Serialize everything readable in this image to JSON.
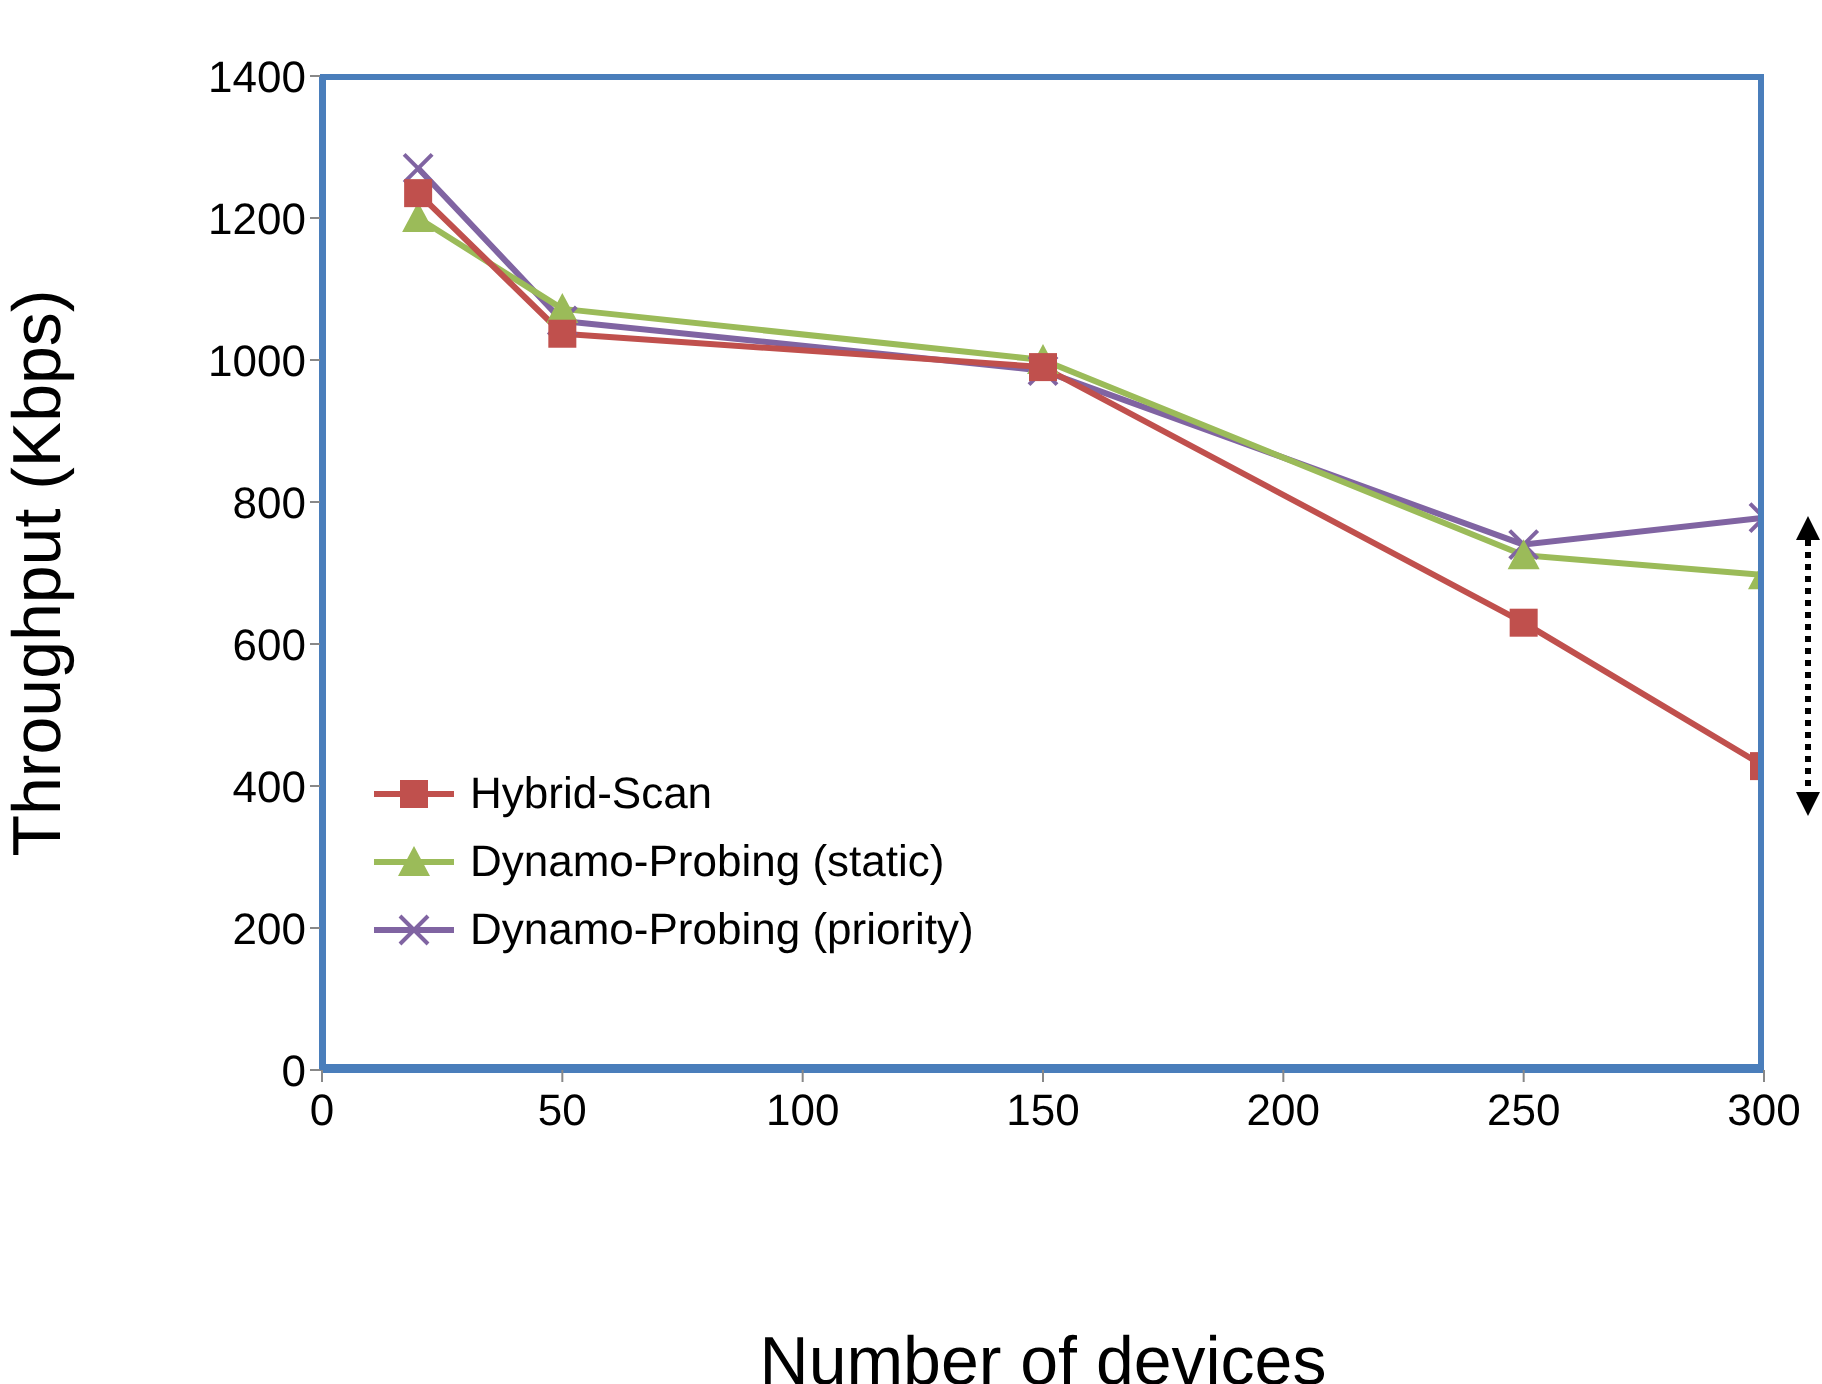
{
  "chart_data": {
    "type": "line",
    "xlabel": "Number of devices",
    "ylabel": "Throughput (Kbps)",
    "x": [
      20,
      50,
      150,
      250,
      300
    ],
    "series": [
      {
        "name": "Hybrid-Scan",
        "color": "#c0504d",
        "marker": "square",
        "values": [
          1235,
          1037,
          990,
          630,
          428
        ]
      },
      {
        "name": "Dynamo-Probing (static)",
        "color": "#9bbb59",
        "marker": "triangle",
        "values": [
          1200,
          1072,
          1000,
          725,
          697
        ]
      },
      {
        "name": "Dynamo-Probing (priority)",
        "color": "#8064a2",
        "marker": "cross",
        "values": [
          1270,
          1055,
          985,
          740,
          778
        ]
      }
    ],
    "xlim": [
      0,
      300
    ],
    "xticks": [
      0,
      50,
      100,
      150,
      200,
      250,
      300
    ],
    "ylim": [
      0,
      1400
    ],
    "yticks": [
      0,
      200,
      400,
      600,
      800,
      1000,
      1200,
      1400
    ],
    "grid": false,
    "legend": "bottom left"
  }
}
